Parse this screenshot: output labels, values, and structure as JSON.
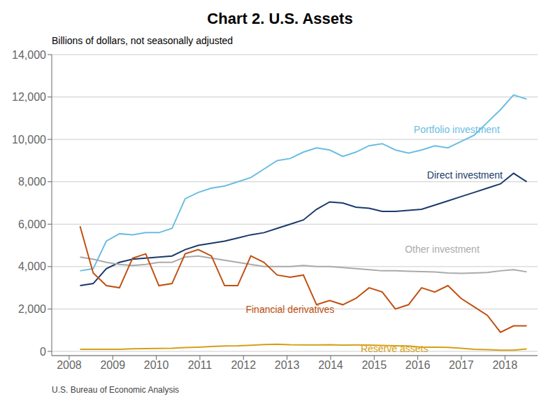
{
  "chart_data": {
    "type": "line",
    "title": "Chart 2. U.S. Assets",
    "subtitle": "Billions of dollars, not seasonally adjusted",
    "source": "U.S. Bureau of Economic Analysis",
    "x": [
      2008.25,
      2008.551471,
      2008.852941,
      2009.154412,
      2009.455882,
      2009.757353,
      2010.058824,
      2010.360294,
      2010.661765,
      2010.963235,
      2011.264706,
      2011.566176,
      2011.867647,
      2012.169118,
      2012.470588,
      2012.772059,
      2013.073529,
      2013.375,
      2013.676471,
      2013.977941,
      2014.279412,
      2014.580882,
      2014.882353,
      2015.183824,
      2015.485294,
      2015.786765,
      2016.088235,
      2016.389706,
      2016.691176,
      2016.992647,
      2017.294118,
      2017.595588,
      2017.897059,
      2018.198529,
      2018.5
    ],
    "xlim": [
      2007.6,
      2018.75
    ],
    "xticks": [
      2008,
      2009,
      2010,
      2011,
      2012,
      2013,
      2014,
      2015,
      2016,
      2017,
      2018
    ],
    "ylim": [
      -200,
      14000
    ],
    "yticks": [
      0,
      {
        "value": 2000,
        "label": "2,000"
      },
      {
        "value": 4000,
        "label": "4,000"
      },
      {
        "value": 6000,
        "label": "6,000"
      },
      {
        "value": 8000,
        "label": "8,000"
      },
      {
        "value": 10000,
        "label": "10,000"
      },
      {
        "value": 12000,
        "label": "12,000"
      },
      {
        "value": 14000,
        "label": "14,000"
      }
    ],
    "grid": "y",
    "series": [
      {
        "name": "Portfolio investment",
        "color": "#6BBDE3",
        "values": [
          3800,
          3900,
          5200,
          5550,
          5500,
          5600,
          5600,
          5800,
          7200,
          7500,
          7700,
          7800,
          8000,
          8200,
          8600,
          9000,
          9100,
          9400,
          9600,
          9500,
          9200,
          9400,
          9700,
          9800,
          9500,
          9350,
          9500,
          9700,
          9600,
          9900,
          10200,
          10800,
          11400,
          12100,
          11900
        ]
      },
      {
        "name": "Direct investment",
        "color": "#1A3A6B",
        "values": [
          3100,
          3200,
          3900,
          4200,
          4350,
          4400,
          4450,
          4500,
          4800,
          5000,
          5100,
          5200,
          5350,
          5500,
          5600,
          5800,
          6000,
          6200,
          6700,
          7050,
          7000,
          6800,
          6750,
          6600,
          6600,
          6650,
          6700,
          6900,
          7100,
          7300,
          7500,
          7700,
          7900,
          8400,
          8000
        ]
      },
      {
        "name": "Other investment",
        "color": "#AAAAAA",
        "values": [
          4450,
          4350,
          4200,
          4100,
          4050,
          4100,
          4200,
          4200,
          4450,
          4500,
          4400,
          4300,
          4200,
          4100,
          4000,
          4000,
          4000,
          4050,
          4000,
          4000,
          3950,
          3900,
          3850,
          3800,
          3800,
          3780,
          3760,
          3750,
          3700,
          3680,
          3700,
          3720,
          3800,
          3850,
          3750
        ]
      },
      {
        "name": "Financial derivatives",
        "color": "#C05010",
        "values": [
          5900,
          3700,
          3100,
          3000,
          4400,
          4600,
          3100,
          3200,
          4600,
          4800,
          4500,
          3100,
          3100,
          4500,
          4200,
          3600,
          3500,
          3600,
          2200,
          2400,
          2200,
          2500,
          3000,
          2800,
          2000,
          2200,
          3000,
          2800,
          3100,
          2500,
          2100,
          1700,
          900,
          1200,
          1200
        ]
      },
      {
        "name": "Reserve assets",
        "color": "#D4A017",
        "values": [
          100,
          100,
          100,
          100,
          120,
          130,
          140,
          150,
          180,
          200,
          230,
          250,
          260,
          290,
          320,
          340,
          310,
          300,
          300,
          310,
          295,
          300,
          295,
          280,
          260,
          250,
          200,
          200,
          190,
          150,
          100,
          80,
          60,
          60,
          110
        ]
      }
    ],
    "annotations": [
      {
        "text": "Portfolio investment",
        "x": 2015.908,
        "y": 10200,
        "color": "#6BBDE3"
      },
      {
        "text": "Direct investment",
        "x": 2016.2125,
        "y": 8050,
        "color": "#1A3A6B"
      },
      {
        "text": "Other investment",
        "x": 2015.705,
        "y": 4550,
        "color": "#AAAAAA"
      },
      {
        "text": "Financial derivatives",
        "x": 2012.051,
        "y": 1700,
        "color": "#C05010"
      },
      {
        "text": "Reserve assets",
        "x": 2014.69,
        "y": -130,
        "color": "#D4A017"
      }
    ]
  }
}
